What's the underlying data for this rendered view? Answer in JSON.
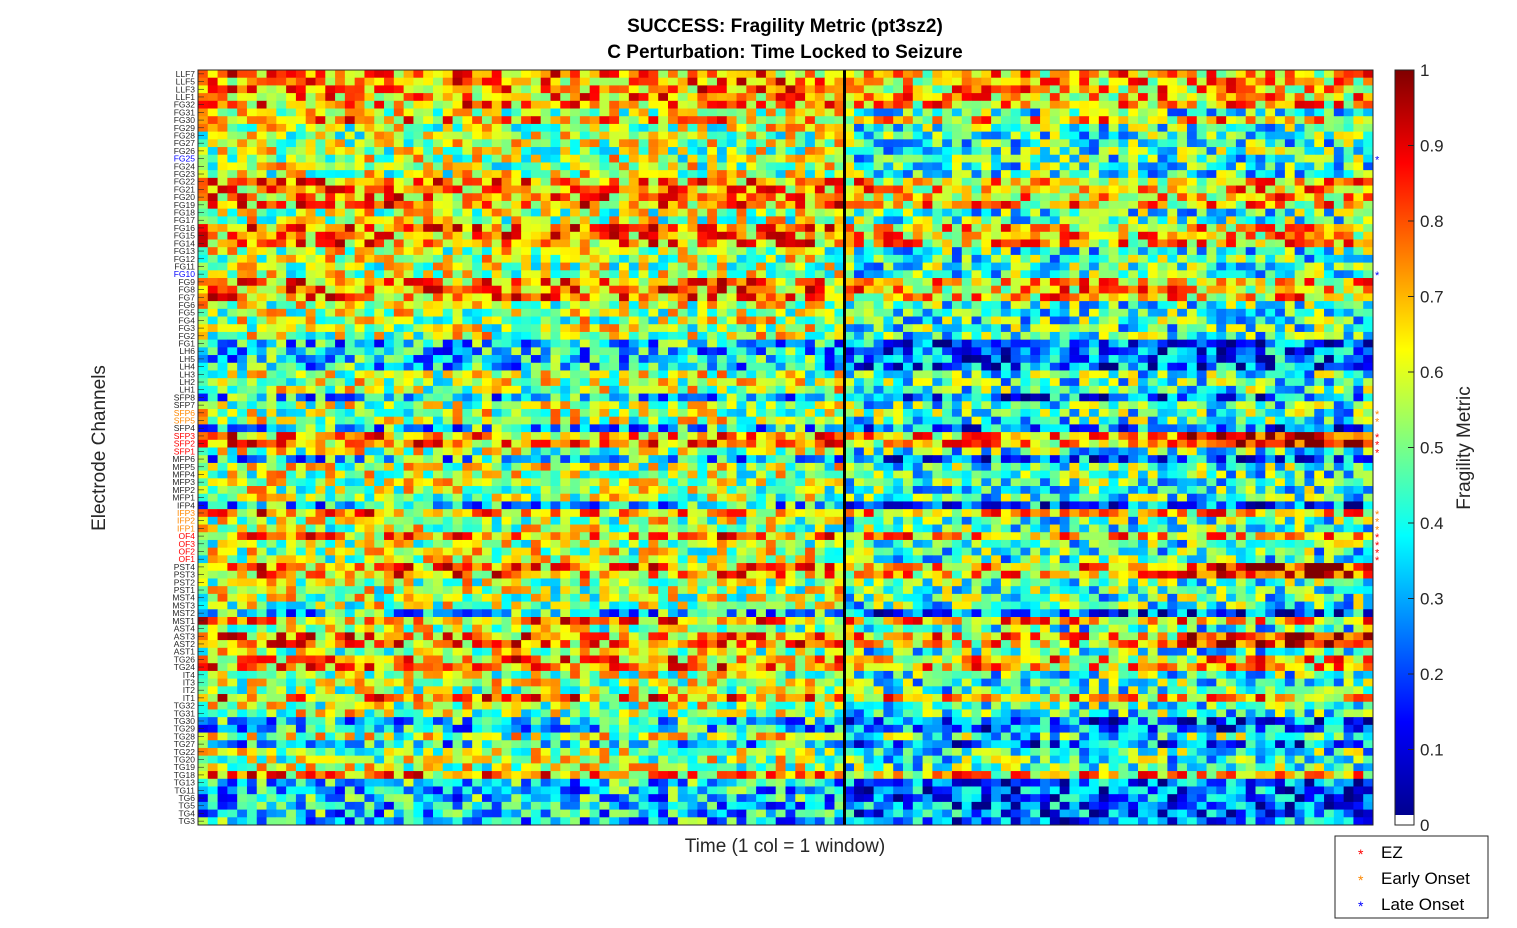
{
  "chart_data": {
    "type": "heatmap",
    "title": "SUCCESS: Fragility Metric (pt3sz2)",
    "subtitle": "C Perturbation:  Time Locked to Seizure",
    "xlabel": "Time (1 col = 1 window)",
    "ylabel": "Electrode Channels",
    "colorbar": {
      "label": "Fragility Metric",
      "colormap": "jet",
      "range": [
        0,
        1
      ],
      "ticks": [
        "0",
        "0.1",
        "0.2",
        "0.3",
        "0.4",
        "0.5",
        "0.6",
        "0.7",
        "0.8",
        "0.9",
        "1"
      ]
    },
    "seizure_onset_marker": "vertical black line",
    "channels": [
      "LLF7",
      "LLF5",
      "LLF3",
      "LLF1",
      "FG32",
      "FG31",
      "FG30",
      "FG29",
      "FG28",
      "FG27",
      "FG26",
      "FG25",
      "FG24",
      "FG23",
      "FG22",
      "FG21",
      "FG20",
      "FG19",
      "FG18",
      "FG17",
      "FG16",
      "FG15",
      "FG14",
      "FG13",
      "FG12",
      "FG11",
      "FG10",
      "FG9",
      "FG8",
      "FG7",
      "FG6",
      "FG5",
      "FG4",
      "FG3",
      "FG2",
      "FG1",
      "LH6",
      "LH5",
      "LH4",
      "LH3",
      "LH2",
      "LH1",
      "SFP8",
      "SFP7",
      "SFP6",
      "SFP5",
      "SFP4",
      "SFP3",
      "SFP2",
      "SFP1",
      "MFP6",
      "MFP5",
      "MFP4",
      "MFP3",
      "MFP2",
      "MFP1",
      "IFP4",
      "IFP3",
      "IFP2",
      "IFP1",
      "OF4",
      "OF3",
      "OF2",
      "OF1",
      "PST4",
      "PST3",
      "PST2",
      "PST1",
      "MST4",
      "MST3",
      "MST2",
      "MST1",
      "AST4",
      "AST3",
      "AST2",
      "AST1",
      "TG26",
      "TG24",
      "IT4",
      "IT3",
      "IT2",
      "IT1",
      "TG32",
      "TG31",
      "TG30",
      "TG29",
      "TG28",
      "TG27",
      "TG22",
      "TG20",
      "TG19",
      "TG18",
      "TG13",
      "TG11",
      "TG6",
      "TG5",
      "TG4",
      "TG3"
    ],
    "channel_classes": {
      "ez": [
        "SFP3",
        "SFP2",
        "SFP1",
        "OF4",
        "OF3",
        "OF2",
        "OF1"
      ],
      "early_onset": [
        "SFP6",
        "SFP5",
        "IFP3",
        "IFP2",
        "IFP1"
      ],
      "late_onset": [
        "FG25",
        "FG10"
      ]
    },
    "legend": [
      {
        "marker": "*",
        "label": "EZ",
        "color": "#ff0000"
      },
      {
        "marker": "*",
        "label": "Early Onset",
        "color": "#ff8800"
      },
      {
        "marker": "*",
        "label": "Late Onset",
        "color": "#0000ff"
      }
    ],
    "grid": false,
    "legend_placement": "bottom-right (outside axes)"
  }
}
